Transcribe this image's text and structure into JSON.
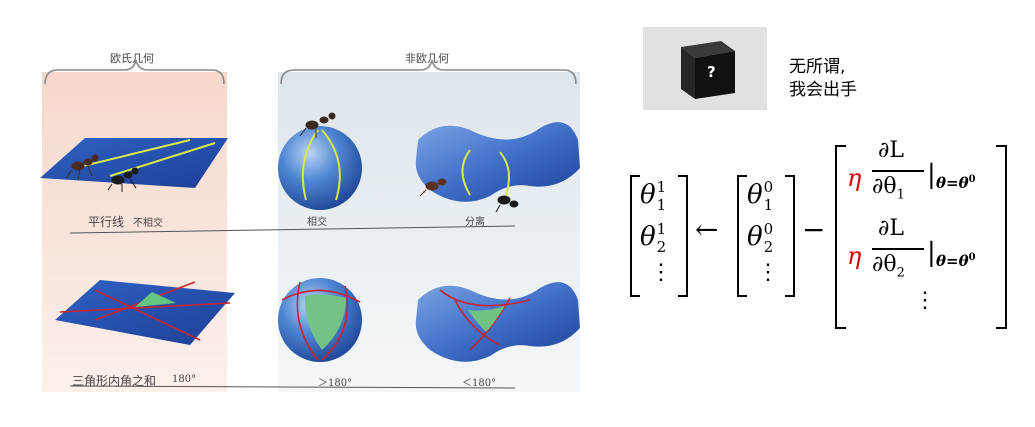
{
  "figure": {
    "euclidean_header": "欧氏几何",
    "non_euclidean_header": "非欧几何",
    "row1": {
      "label_parallel": "平行线",
      "label_no_intersect": "不相交",
      "label_sphere": "相交",
      "label_saddle": "分离"
    },
    "row2": {
      "label_angle_sum": "三角形内角之和",
      "label_flat": "180°",
      "label_sphere": "＞180°",
      "label_saddle": "＜180°"
    }
  },
  "box": {
    "symbol": "?",
    "caption_line1": "无所谓,",
    "caption_line2": "我会出手"
  },
  "equation": {
    "theta": "θ",
    "sub1": "1",
    "sub2": "2",
    "sup_new": "1",
    "sup_old": "0",
    "dots": "⋮",
    "arrow": "←",
    "minus": "−",
    "eta": "η",
    "partial_L": "∂L",
    "partial_theta": "∂θ",
    "bar": "|",
    "cond_theta": "θ=θ",
    "cond_sup": "0"
  }
}
